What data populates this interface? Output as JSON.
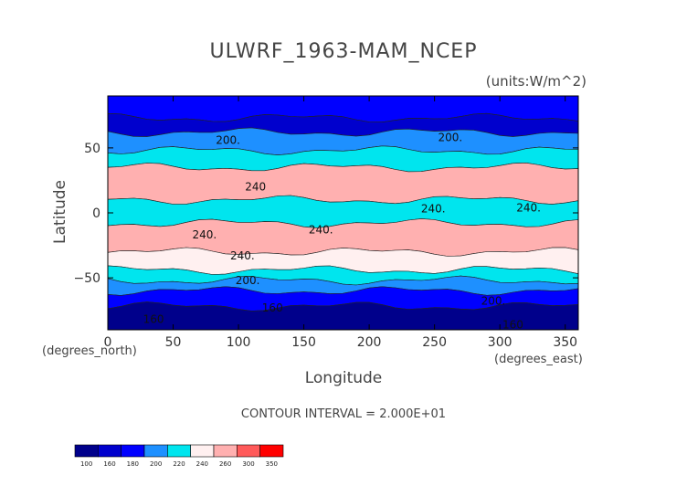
{
  "chart_data": {
    "type": "heatmap",
    "title": "ULWRF_1963-MAM_NCEP",
    "units_label": "(units:W/m^2)",
    "xlabel": "Longitude",
    "ylabel": "Latitude",
    "x_unit_note": "(degrees_east)",
    "y_unit_note": "(degrees_north)",
    "xlim": [
      0,
      360
    ],
    "ylim": [
      -90,
      90
    ],
    "x_ticks": [
      0,
      50,
      100,
      150,
      200,
      250,
      300,
      350
    ],
    "y_ticks": [
      -50,
      0,
      50
    ],
    "contour_interval_text": "CONTOUR INTERVAL = 2.000E+01",
    "colorbar": {
      "levels": [
        100,
        160,
        180,
        200,
        220,
        240,
        260,
        300,
        350
      ],
      "colors": [
        "#00008b",
        "#0000cd",
        "#0000ff",
        "#1e90ff",
        "#00e5ee",
        "#fff0f0",
        "#ffb0b0",
        "#ff5a5a",
        "#ff0000"
      ]
    },
    "contour_labels": [
      {
        "text": "200.",
        "lon": 92,
        "lat": 56
      },
      {
        "text": "200.",
        "lon": 262,
        "lat": 58
      },
      {
        "text": "240",
        "lon": 113,
        "lat": 20
      },
      {
        "text": "240.",
        "lon": 74,
        "lat": -17
      },
      {
        "text": "240.",
        "lon": 249,
        "lat": 3
      },
      {
        "text": "240.",
        "lon": 163,
        "lat": -13
      },
      {
        "text": "240.",
        "lon": 322,
        "lat": 4
      },
      {
        "text": "240.",
        "lon": 103,
        "lat": -33
      },
      {
        "text": "200.",
        "lon": 107,
        "lat": -52
      },
      {
        "text": "200.",
        "lon": 295,
        "lat": -68
      },
      {
        "text": "160",
        "lon": 126,
        "lat": -73
      },
      {
        "text": "160",
        "lon": 35,
        "lat": -82
      },
      {
        "text": "160",
        "lon": 310,
        "lat": -86
      }
    ],
    "bands": [
      {
        "lat_from": 90,
        "lat_to": 73,
        "value": 190
      },
      {
        "lat_from": 73,
        "lat_to": 62,
        "value": 170
      },
      {
        "lat_from": 62,
        "lat_to": 48,
        "value": 210
      },
      {
        "lat_from": 48,
        "lat_to": 35,
        "value": 230
      },
      {
        "lat_from": 35,
        "lat_to": 10,
        "value": 270
      },
      {
        "lat_from": 10,
        "lat_to": -8,
        "value": 235
      },
      {
        "lat_from": -8,
        "lat_to": -30,
        "value": 270
      },
      {
        "lat_from": -30,
        "lat_to": -44,
        "value": 250
      },
      {
        "lat_from": -44,
        "lat_to": -52,
        "value": 225
      },
      {
        "lat_from": -52,
        "lat_to": -60,
        "value": 205
      },
      {
        "lat_from": -60,
        "lat_to": -72,
        "value": 185
      },
      {
        "lat_from": -72,
        "lat_to": -90,
        "value": 150
      }
    ]
  }
}
